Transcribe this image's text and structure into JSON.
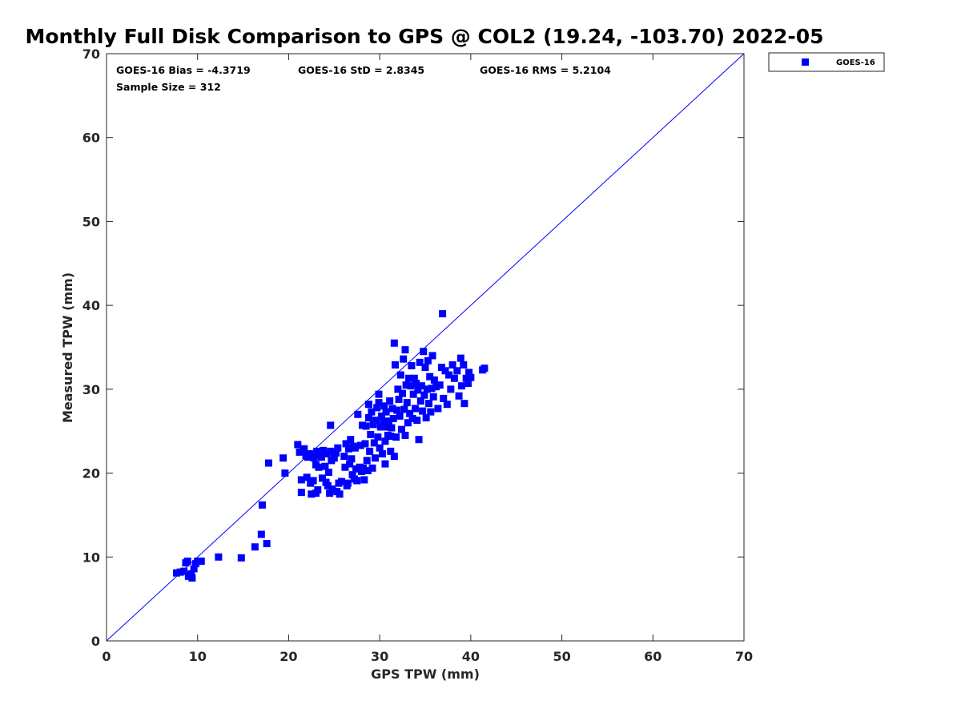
{
  "chart_data": {
    "type": "scatter",
    "title": "Monthly Full Disk Comparison to GPS @ COL2 (19.24, -103.70) 2022-05",
    "xlabel": "GPS TPW (mm)",
    "ylabel": "Measured TPW (mm)",
    "xlim": [
      0,
      70
    ],
    "ylim": [
      0,
      70
    ],
    "xticks": [
      "0",
      "10",
      "20",
      "30",
      "40",
      "50",
      "60",
      "70"
    ],
    "yticks": [
      "0",
      "10",
      "20",
      "30",
      "40",
      "50",
      "60",
      "70"
    ],
    "grid": false,
    "legend_position": "outside top-right",
    "colors": {
      "series": "#0000ff",
      "reference_line": "#0000ff",
      "axis": "#262626"
    },
    "stats": {
      "bias": "GOES-16 Bias = -4.3719",
      "std": "GOES-16 StD = 2.8345",
      "rms": "GOES-16 RMS = 5.2104",
      "sample": "Sample Size = 312"
    },
    "reference_line": {
      "from": [
        0,
        0
      ],
      "to": [
        70,
        70
      ]
    },
    "series": [
      {
        "name": "GOES-16",
        "marker": "square",
        "points": [
          [
            7.7,
            8.1
          ],
          [
            8.1,
            8.2
          ],
          [
            8.5,
            8.3
          ],
          [
            8.7,
            9.3
          ],
          [
            8.9,
            9.5
          ],
          [
            9.0,
            7.7
          ],
          [
            9.3,
            8.0
          ],
          [
            9.4,
            7.5
          ],
          [
            9.6,
            8.6
          ],
          [
            9.8,
            9.2
          ],
          [
            10.0,
            9.5
          ],
          [
            10.4,
            9.5
          ],
          [
            12.3,
            10.0
          ],
          [
            14.8,
            9.9
          ],
          [
            16.3,
            11.2
          ],
          [
            17.0,
            12.7
          ],
          [
            17.1,
            16.2
          ],
          [
            17.6,
            11.6
          ],
          [
            17.8,
            21.2
          ],
          [
            19.4,
            21.8
          ],
          [
            19.6,
            20.0
          ],
          [
            21.0,
            23.4
          ],
          [
            21.2,
            22.5
          ],
          [
            21.4,
            19.2
          ],
          [
            21.4,
            17.7
          ],
          [
            21.6,
            22.6
          ],
          [
            21.7,
            22.9
          ],
          [
            21.9,
            22.1
          ],
          [
            22.0,
            19.5
          ],
          [
            22.1,
            21.9
          ],
          [
            22.3,
            22.3
          ],
          [
            22.4,
            18.8
          ],
          [
            22.5,
            17.5
          ],
          [
            22.6,
            22.1
          ],
          [
            22.7,
            19.1
          ],
          [
            22.8,
            21.8
          ],
          [
            23.0,
            17.6
          ],
          [
            23.0,
            21.0
          ],
          [
            23.1,
            22.6
          ],
          [
            23.2,
            18.0
          ],
          [
            23.3,
            20.7
          ],
          [
            23.4,
            22.2
          ],
          [
            23.6,
            21.9
          ],
          [
            23.7,
            19.4
          ],
          [
            23.8,
            22.7
          ],
          [
            24.0,
            20.8
          ],
          [
            24.1,
            18.9
          ],
          [
            24.2,
            22.3
          ],
          [
            24.3,
            18.5
          ],
          [
            24.4,
            20.1
          ],
          [
            24.5,
            17.6
          ],
          [
            24.6,
            22.6
          ],
          [
            24.6,
            25.7
          ],
          [
            24.7,
            21.5
          ],
          [
            24.8,
            18.1
          ],
          [
            25.0,
            21.8
          ],
          [
            25.2,
            22.4
          ],
          [
            25.3,
            17.8
          ],
          [
            25.4,
            23.0
          ],
          [
            25.5,
            18.8
          ],
          [
            25.6,
            17.5
          ],
          [
            25.8,
            19.0
          ],
          [
            26.1,
            22.0
          ],
          [
            26.2,
            20.7
          ],
          [
            26.3,
            23.5
          ],
          [
            26.4,
            18.5
          ],
          [
            26.5,
            18.8
          ],
          [
            26.6,
            22.9
          ],
          [
            26.7,
            21.1
          ],
          [
            26.8,
            24.0
          ],
          [
            26.9,
            21.7
          ],
          [
            27.0,
            19.8
          ],
          [
            27.1,
            23.2
          ],
          [
            27.2,
            19.3
          ],
          [
            27.3,
            23.0
          ],
          [
            27.4,
            20.5
          ],
          [
            27.5,
            19.1
          ],
          [
            27.6,
            27.0
          ],
          [
            27.8,
            20.7
          ],
          [
            27.9,
            23.3
          ],
          [
            28.0,
            20.2
          ],
          [
            28.1,
            25.7
          ],
          [
            28.2,
            20.6
          ],
          [
            28.3,
            19.2
          ],
          [
            28.4,
            23.5
          ],
          [
            28.5,
            25.6
          ],
          [
            28.6,
            21.5
          ],
          [
            28.7,
            20.3
          ],
          [
            28.8,
            26.6
          ],
          [
            28.8,
            28.2
          ],
          [
            28.9,
            22.6
          ],
          [
            29.0,
            24.6
          ],
          [
            29.1,
            27.3
          ],
          [
            29.2,
            20.6
          ],
          [
            29.3,
            25.8
          ],
          [
            29.4,
            23.6
          ],
          [
            29.5,
            21.8
          ],
          [
            29.6,
            26.3
          ],
          [
            29.7,
            27.8
          ],
          [
            29.8,
            24.3
          ],
          [
            29.9,
            28.4
          ],
          [
            29.9,
            29.4
          ],
          [
            30.0,
            23.0
          ],
          [
            30.1,
            25.5
          ],
          [
            30.2,
            26.8
          ],
          [
            30.3,
            22.3
          ],
          [
            30.4,
            26.1
          ],
          [
            30.5,
            28.0
          ],
          [
            30.6,
            21.1
          ],
          [
            30.6,
            23.8
          ],
          [
            30.7,
            27.3
          ],
          [
            30.8,
            25.5
          ],
          [
            30.9,
            24.5
          ],
          [
            31.0,
            26.2
          ],
          [
            31.1,
            28.6
          ],
          [
            31.2,
            24.4
          ],
          [
            31.2,
            22.6
          ],
          [
            31.3,
            25.4
          ],
          [
            31.4,
            27.7
          ],
          [
            31.5,
            26.5
          ],
          [
            31.6,
            22.0
          ],
          [
            31.6,
            35.5
          ],
          [
            31.7,
            32.9
          ],
          [
            31.8,
            24.3
          ],
          [
            31.9,
            27.5
          ],
          [
            32.0,
            30.0
          ],
          [
            32.1,
            28.8
          ],
          [
            32.2,
            26.8
          ],
          [
            32.3,
            31.7
          ],
          [
            32.4,
            25.2
          ],
          [
            32.5,
            29.5
          ],
          [
            32.6,
            33.6
          ],
          [
            32.7,
            27.6
          ],
          [
            32.8,
            24.5
          ],
          [
            32.8,
            34.7
          ],
          [
            32.9,
            30.5
          ],
          [
            33.0,
            28.4
          ],
          [
            33.1,
            26.0
          ],
          [
            33.2,
            31.3
          ],
          [
            33.3,
            27.1
          ],
          [
            33.4,
            30.4
          ],
          [
            33.5,
            32.8
          ],
          [
            33.6,
            26.5
          ],
          [
            33.7,
            29.4
          ],
          [
            33.8,
            31.3
          ],
          [
            33.9,
            27.7
          ],
          [
            34.0,
            30.7
          ],
          [
            34.1,
            26.3
          ],
          [
            34.2,
            29.9
          ],
          [
            34.3,
            24.0
          ],
          [
            34.4,
            33.2
          ],
          [
            34.5,
            28.6
          ],
          [
            34.6,
            30.4
          ],
          [
            34.7,
            27.4
          ],
          [
            34.8,
            34.5
          ],
          [
            34.9,
            29.3
          ],
          [
            35.0,
            32.6
          ],
          [
            35.1,
            26.6
          ],
          [
            35.2,
            30.0
          ],
          [
            35.3,
            33.4
          ],
          [
            35.4,
            28.3
          ],
          [
            35.5,
            31.5
          ],
          [
            35.6,
            27.3
          ],
          [
            35.7,
            30.1
          ],
          [
            35.8,
            34.0
          ],
          [
            35.9,
            29.1
          ],
          [
            36.0,
            31.1
          ],
          [
            36.2,
            30.3
          ],
          [
            36.4,
            27.7
          ],
          [
            36.6,
            30.5
          ],
          [
            36.8,
            32.6
          ],
          [
            36.9,
            39.0
          ],
          [
            37.0,
            28.9
          ],
          [
            37.2,
            32.2
          ],
          [
            37.4,
            28.2
          ],
          [
            37.6,
            31.7
          ],
          [
            37.8,
            30.0
          ],
          [
            38.0,
            32.9
          ],
          [
            38.2,
            31.3
          ],
          [
            38.5,
            32.2
          ],
          [
            38.7,
            29.2
          ],
          [
            38.9,
            33.7
          ],
          [
            39.0,
            30.4
          ],
          [
            39.2,
            32.9
          ],
          [
            39.3,
            28.3
          ],
          [
            39.5,
            31.3
          ],
          [
            39.7,
            30.7
          ],
          [
            39.8,
            32.0
          ],
          [
            40.0,
            31.4
          ],
          [
            41.3,
            32.3
          ],
          [
            41.5,
            32.5
          ]
        ]
      }
    ]
  }
}
